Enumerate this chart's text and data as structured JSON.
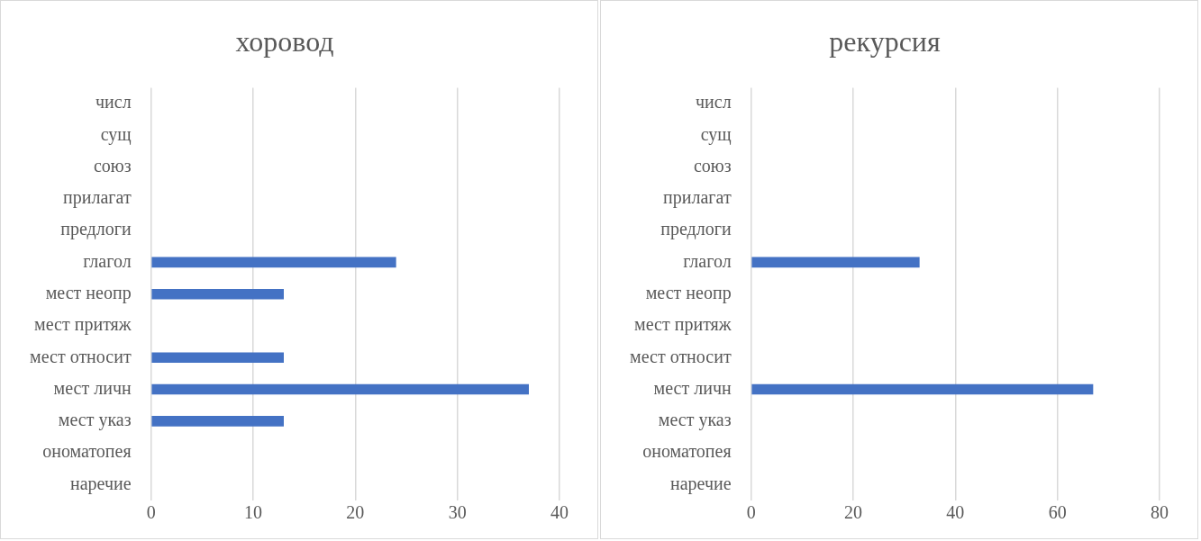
{
  "chart_data": [
    {
      "type": "bar",
      "orientation": "horizontal",
      "title": "хоровод",
      "categories": [
        "числ",
        "сущ",
        "союз",
        "прилагат",
        "предлоги",
        "глагол",
        "мест неопр",
        "мест притяж",
        "мест относит",
        "мест личн",
        "мест указ",
        "ономатопея",
        "наречие"
      ],
      "values": [
        0,
        0,
        0,
        0,
        0,
        24,
        13,
        0,
        13,
        37,
        13,
        0,
        0
      ],
      "color": "#4472c4",
      "xlim": [
        0,
        40
      ],
      "xticks": [
        0,
        10,
        20,
        30,
        40
      ],
      "grid": "x",
      "legend": false
    },
    {
      "type": "bar",
      "orientation": "horizontal",
      "title": "рекурсия",
      "categories": [
        "числ",
        "сущ",
        "союз",
        "прилагат",
        "предлоги",
        "глагол",
        "мест неопр",
        "мест притяж",
        "мест относит",
        "мест личн",
        "мест указ",
        "ономатопея",
        "наречие"
      ],
      "values": [
        0,
        0,
        0,
        0,
        0,
        33,
        0,
        0,
        0,
        67,
        0,
        0,
        0
      ],
      "color": "#4472c4",
      "xlim": [
        0,
        80
      ],
      "xticks": [
        0,
        20,
        40,
        60,
        80
      ],
      "grid": "x",
      "legend": false
    }
  ]
}
